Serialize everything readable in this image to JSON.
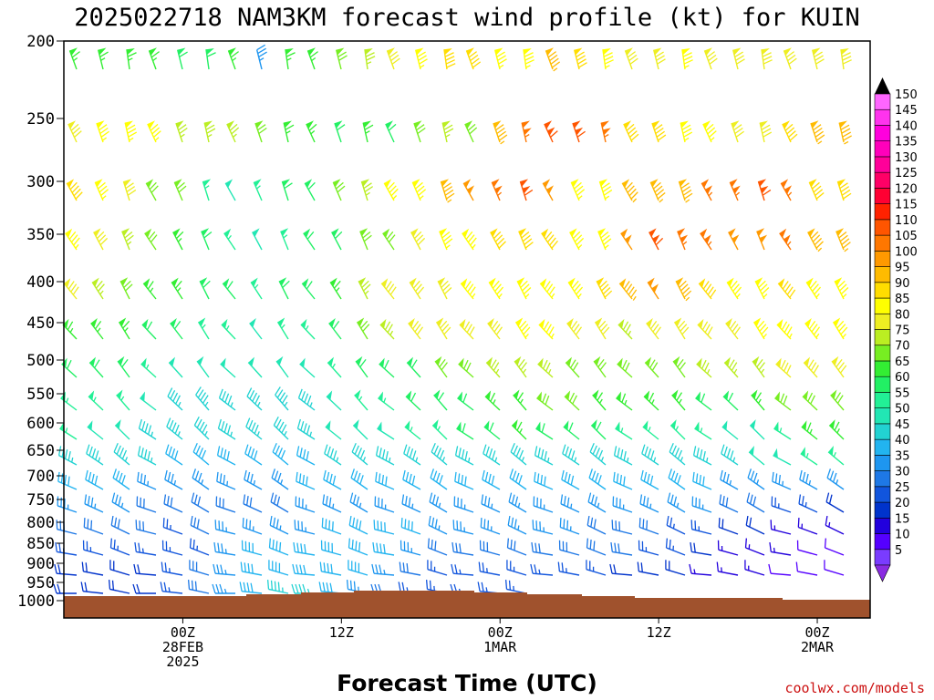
{
  "chart_data": {
    "type": "wind-barb-time-height",
    "title": "2025022718 NAM3KM forecast wind profile (kt) for KUIN",
    "xlabel": "Forecast Time (UTC)",
    "ylabel": "",
    "credit": "coolwx.com/models",
    "y_pressure_levels": [
      200,
      250,
      300,
      350,
      400,
      450,
      500,
      550,
      600,
      650,
      700,
      750,
      800,
      850,
      900,
      950,
      1000
    ],
    "y_range": [
      200,
      1000
    ],
    "x_range_hours": [
      -9,
      52
    ],
    "x_ticks": [
      {
        "hour": 0,
        "lines": [
          "00Z",
          "28FEB",
          "2025"
        ]
      },
      {
        "hour": 12,
        "lines": [
          "12Z"
        ]
      },
      {
        "hour": 24,
        "lines": [
          "00Z",
          "1MAR"
        ]
      },
      {
        "hour": 36,
        "lines": [
          "12Z"
        ]
      },
      {
        "hour": 48,
        "lines": [
          "00Z",
          "2MAR"
        ]
      }
    ],
    "colorbar_levels": [
      5,
      10,
      15,
      20,
      25,
      30,
      35,
      40,
      45,
      50,
      55,
      60,
      65,
      70,
      75,
      80,
      85,
      90,
      95,
      100,
      105,
      110,
      115,
      120,
      125,
      130,
      135,
      140,
      145,
      150
    ],
    "colorbar_colors": [
      "#7a3cff",
      "#5500ff",
      "#2200dd",
      "#0033cc",
      "#1155dd",
      "#1e78e6",
      "#1e96f0",
      "#22b4f0",
      "#22d2d2",
      "#22e6b4",
      "#22f096",
      "#22f064",
      "#33ee33",
      "#77ee22",
      "#bbee22",
      "#eeee22",
      "#ffff00",
      "#ffdd00",
      "#ffbb00",
      "#ff9900",
      "#ff7700",
      "#ff5500",
      "#ff2200",
      "#ff0033",
      "#ff0066",
      "#ff0099",
      "#ff00bb",
      "#ff00dd",
      "#ff33ee",
      "#ff66ff"
    ],
    "wind_speed_kt_rows": [
      [
        65,
        65,
        65,
        65,
        60,
        60,
        65,
        35,
        65,
        65,
        70,
        75,
        80,
        85,
        90,
        90,
        85,
        85,
        95,
        90,
        85,
        80,
        80,
        85,
        80,
        80,
        80,
        80,
        80,
        80,
        80
      ],
      [
        80,
        85,
        85,
        85,
        75,
        75,
        75,
        70,
        65,
        65,
        60,
        65,
        60,
        70,
        75,
        70,
        95,
        105,
        110,
        110,
        105,
        90,
        90,
        85,
        85,
        80,
        80,
        90,
        95,
        95,
        95
      ],
      [
        90,
        85,
        80,
        70,
        70,
        55,
        50,
        55,
        60,
        60,
        70,
        75,
        85,
        85,
        95,
        100,
        105,
        110,
        100,
        85,
        85,
        95,
        95,
        95,
        105,
        105,
        110,
        105,
        90,
        90,
        95
      ],
      [
        85,
        80,
        75,
        70,
        65,
        60,
        55,
        50,
        55,
        60,
        60,
        70,
        70,
        80,
        85,
        85,
        90,
        90,
        90,
        85,
        85,
        100,
        110,
        105,
        105,
        100,
        100,
        105,
        95,
        95,
        105
      ],
      [
        80,
        75,
        70,
        65,
        65,
        60,
        60,
        55,
        60,
        60,
        65,
        75,
        80,
        80,
        80,
        85,
        85,
        85,
        85,
        85,
        90,
        95,
        100,
        95,
        90,
        85,
        85,
        90,
        85,
        85,
        85
      ],
      [
        65,
        65,
        65,
        60,
        60,
        55,
        55,
        50,
        55,
        55,
        60,
        70,
        75,
        80,
        80,
        80,
        80,
        85,
        85,
        80,
        80,
        75,
        80,
        80,
        80,
        80,
        85,
        85,
        85,
        85,
        80
      ],
      [
        60,
        60,
        60,
        55,
        50,
        50,
        50,
        50,
        50,
        50,
        55,
        60,
        60,
        60,
        70,
        70,
        75,
        75,
        75,
        70,
        70,
        70,
        70,
        70,
        75,
        75,
        75,
        80,
        80,
        80,
        75
      ],
      [
        55,
        55,
        55,
        50,
        45,
        45,
        45,
        45,
        45,
        45,
        50,
        55,
        55,
        60,
        60,
        60,
        65,
        65,
        70,
        70,
        65,
        65,
        65,
        65,
        60,
        60,
        65,
        70,
        70,
        70,
        70
      ],
      [
        55,
        50,
        50,
        45,
        45,
        45,
        45,
        45,
        45,
        45,
        50,
        50,
        50,
        55,
        55,
        60,
        60,
        65,
        60,
        60,
        60,
        55,
        55,
        55,
        55,
        50,
        50,
        55,
        65,
        65,
        65
      ],
      [
        45,
        45,
        45,
        45,
        40,
        40,
        40,
        40,
        40,
        40,
        45,
        45,
        45,
        45,
        45,
        45,
        45,
        45,
        45,
        45,
        45,
        45,
        45,
        45,
        45,
        45,
        50,
        50,
        55,
        55,
        50
      ],
      [
        40,
        40,
        40,
        35,
        35,
        35,
        35,
        35,
        35,
        40,
        40,
        40,
        40,
        40,
        40,
        40,
        40,
        40,
        40,
        40,
        40,
        40,
        40,
        40,
        40,
        35,
        35,
        35,
        35,
        35,
        35
      ],
      [
        35,
        35,
        35,
        30,
        30,
        30,
        30,
        30,
        30,
        35,
        35,
        35,
        35,
        35,
        35,
        35,
        35,
        35,
        35,
        35,
        35,
        35,
        35,
        35,
        35,
        30,
        30,
        25,
        25,
        20,
        20
      ],
      [
        30,
        30,
        30,
        30,
        25,
        30,
        35,
        35,
        35,
        35,
        40,
        40,
        40,
        40,
        35,
        35,
        35,
        35,
        35,
        35,
        30,
        30,
        30,
        25,
        25,
        20,
        20,
        15,
        15,
        15,
        10
      ],
      [
        25,
        25,
        25,
        25,
        25,
        25,
        35,
        40,
        40,
        40,
        40,
        40,
        40,
        35,
        30,
        30,
        30,
        30,
        30,
        30,
        30,
        30,
        25,
        25,
        20,
        15,
        15,
        15,
        10,
        10,
        10
      ],
      [
        20,
        20,
        20,
        20,
        25,
        30,
        35,
        40,
        40,
        40,
        40,
        40,
        35,
        30,
        25,
        25,
        25,
        25,
        25,
        25,
        25,
        20,
        20,
        20,
        15,
        15,
        15,
        10,
        10,
        10,
        10
      ],
      [
        20,
        20,
        20,
        20,
        25,
        30,
        35,
        40,
        45,
        45,
        40,
        35,
        30,
        25,
        25,
        25,
        25,
        25,
        0,
        0,
        0,
        0,
        0,
        0,
        0,
        0,
        0,
        0,
        0,
        0,
        0
      ]
    ]
  }
}
